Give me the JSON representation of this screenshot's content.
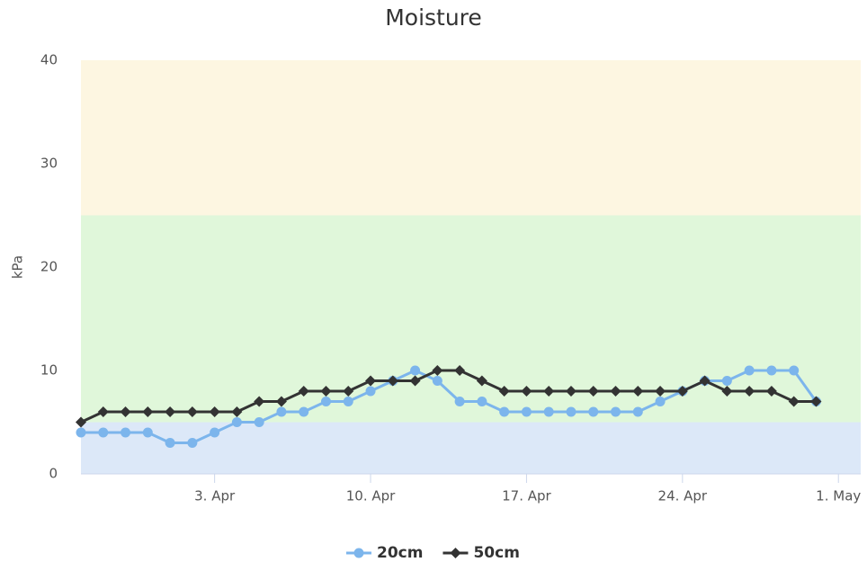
{
  "chart_data": {
    "type": "line",
    "title": "Moisture",
    "y_label": "kPa",
    "x": [
      "28. Mar",
      "29. Mar",
      "30. Mar",
      "31. Mar",
      "1. Apr",
      "2. Apr",
      "3. Apr",
      "4. Apr",
      "5. Apr",
      "6. Apr",
      "7. Apr",
      "8. Apr",
      "9. Apr",
      "10. Apr",
      "11. Apr",
      "12. Apr",
      "13. Apr",
      "14. Apr",
      "15. Apr",
      "16. Apr",
      "17. Apr",
      "18. Apr",
      "19. Apr",
      "20. Apr",
      "21. Apr",
      "22. Apr",
      "23. Apr",
      "24. Apr",
      "25. Apr",
      "26. Apr",
      "27. Apr",
      "28. Apr",
      "29. Apr",
      "30. Apr"
    ],
    "xlim": [
      "28. Mar",
      "2. May"
    ],
    "xticks": [
      "3. Apr",
      "10. Apr",
      "17. Apr",
      "24. Apr",
      "1. May"
    ],
    "ylim": [
      0,
      40
    ],
    "yticks": [
      0,
      10,
      20,
      30,
      40
    ],
    "bands": [
      {
        "from": 0,
        "to": 5,
        "color": "#dce8f8"
      },
      {
        "from": 5,
        "to": 25,
        "color": "#e0f7da"
      },
      {
        "from": 25,
        "to": 40,
        "color": "#fdf6e1"
      }
    ],
    "series": [
      {
        "name": "20cm",
        "color": "#7cb5ec",
        "marker": "circle",
        "values": [
          4,
          4,
          4,
          4,
          3,
          3,
          4,
          5,
          5,
          6,
          6,
          7,
          7,
          8,
          9,
          10,
          9,
          7,
          7,
          6,
          6,
          6,
          6,
          6,
          6,
          6,
          7,
          8,
          9,
          9,
          10,
          10,
          10,
          7
        ]
      },
      {
        "name": "50cm",
        "color": "#333333",
        "marker": "diamond",
        "values": [
          5,
          6,
          6,
          6,
          6,
          6,
          6,
          6,
          7,
          7,
          8,
          8,
          8,
          9,
          9,
          9,
          10,
          10,
          9,
          8,
          8,
          8,
          8,
          8,
          8,
          8,
          8,
          8,
          9,
          8,
          8,
          8,
          7,
          7
        ]
      }
    ]
  }
}
